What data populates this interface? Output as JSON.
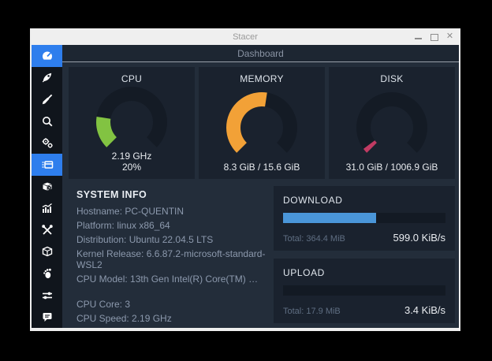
{
  "window": {
    "title": "Stacer",
    "controls": {
      "close_glyph": "✕"
    }
  },
  "header": {
    "title": "Dashboard"
  },
  "sidebar": {
    "items": [
      {
        "icon": "speedometer-icon",
        "page": "dashboard",
        "active": true
      },
      {
        "icon": "rocket-icon",
        "page": "startup-apps",
        "active": false
      },
      {
        "icon": "broom-icon",
        "page": "system-cleaner",
        "active": false
      },
      {
        "icon": "search-icon",
        "page": "search",
        "active": false
      },
      {
        "icon": "gears-icon",
        "page": "services",
        "active": false
      },
      {
        "icon": "processes-icon",
        "page": "processes",
        "active": true
      },
      {
        "icon": "uninstaller-icon",
        "page": "uninstaller",
        "active": false
      },
      {
        "icon": "resources-icon",
        "page": "resources",
        "active": false
      },
      {
        "icon": "tools-icon",
        "page": "helpers",
        "active": false
      },
      {
        "icon": "package-icon",
        "page": "apt-repository",
        "active": false
      },
      {
        "icon": "gnome-foot-icon",
        "page": "gnome-settings",
        "active": false
      },
      {
        "icon": "sliders-icon",
        "page": "settings",
        "active": false
      },
      {
        "icon": "feedback-icon",
        "page": "feedback",
        "active": false
      }
    ]
  },
  "gauges": [
    {
      "title": "CPU",
      "percent": 20,
      "color": "#82c342",
      "value_lines": [
        "2.19 GHz",
        "20%"
      ]
    },
    {
      "title": "MEMORY",
      "percent": 53.2,
      "color": "#f2a137",
      "value_lines": [
        "8.3 GiB / 15.6 GiB"
      ]
    },
    {
      "title": "DISK",
      "percent": 3.1,
      "color": "#c13b63",
      "value_lines": [
        "31.0 GiB / 1006.9 GiB"
      ]
    }
  ],
  "system_info": {
    "title": "SYSTEM INFO",
    "lines": [
      "Hostname: PC-QUENTIN",
      "Platform: linux x86_64",
      "Distribution: Ubuntu 22.04.5 LTS",
      "Kernel Release: 6.6.87.2-microsoft-standard-WSL2",
      "CPU Model: 13th Gen Intel(R) Core(TM) …",
      "",
      "CPU Core: 3",
      "CPU Speed: 2.19 GHz"
    ]
  },
  "network": [
    {
      "title": "DOWNLOAD",
      "percent": 57.5,
      "total": "Total: 364.4 MiB",
      "speed": "599.0 KiB/s"
    },
    {
      "title": "UPLOAD",
      "percent": 0,
      "total": "Total: 17.9 MiB",
      "speed": "3.4 KiB/s"
    }
  ],
  "colors": {
    "accent_blue": "#2e7eed",
    "progress_blue": "#4a96d9",
    "cpu_green": "#82c342",
    "memory_orange": "#f2a137",
    "disk_pink": "#c13b63",
    "card_bg": "#1a222e",
    "content_bg": "#232d3a",
    "sidebar_bg": "#10151c"
  }
}
